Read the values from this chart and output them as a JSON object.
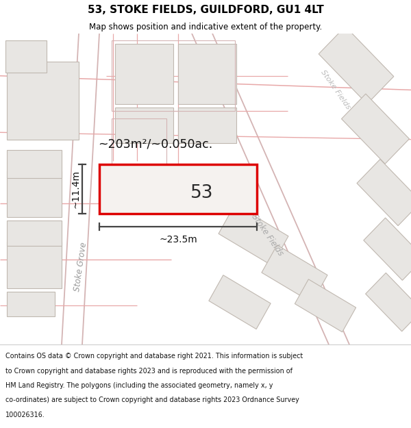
{
  "title": "53, STOKE FIELDS, GUILDFORD, GU1 4LT",
  "subtitle": "Map shows position and indicative extent of the property.",
  "footer_lines": [
    "Contains OS data © Crown copyright and database right 2021. This information is subject",
    "to Crown copyright and database rights 2023 and is reproduced with the permission of",
    "HM Land Registry. The polygons (including the associated geometry, namely x, y",
    "co-ordinates) are subject to Crown copyright and database rights 2023 Ordnance Survey",
    "100026316."
  ],
  "map_bg": "#f7f5f3",
  "footer_bg": "#ffffff",
  "title_bg": "#ffffff",
  "property_color": "#dd0000",
  "property_fill": "#f5f2ef",
  "property_label": "53",
  "area_label": "~203m²/~0.050ac.",
  "width_label": "~23.5m",
  "height_label": "~11.4m",
  "road_label_grove": "Stoke Grove",
  "road_label_fields": "Stoke Fields",
  "building_color": "#e8e6e3",
  "building_edge": "#c0b8b0",
  "road_line_color": "#e8a8a8",
  "road_line_color2": "#d4b4b4",
  "measure_color": "#444444"
}
